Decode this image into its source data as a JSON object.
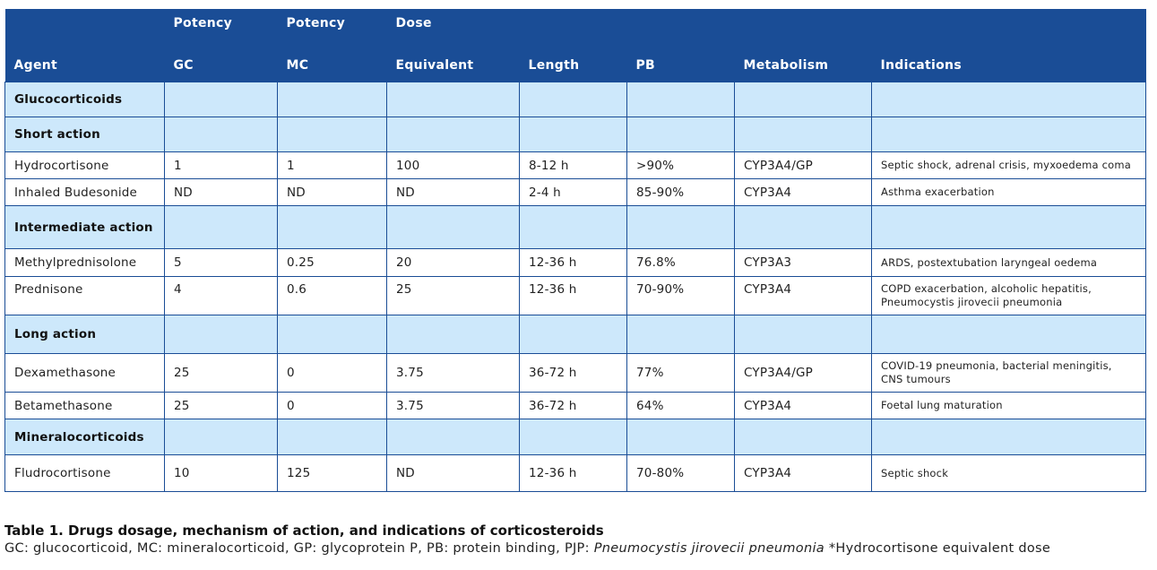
{
  "header": {
    "agent": "Agent",
    "gc": [
      "Potency",
      "GC"
    ],
    "mc": [
      "Potency",
      "MC"
    ],
    "dose": [
      "Dose",
      "Equivalent"
    ],
    "length": "Length",
    "pb": "PB",
    "metabolism": "Metabolism",
    "indications": "Indications"
  },
  "rows": {
    "r0": {
      "section": "Glucocorticoids"
    },
    "r1": {
      "section": "Short action"
    },
    "r2": {
      "agent": "Hydrocortisone",
      "gc": "1",
      "mc": "1",
      "dose": "100",
      "length": "8-12 h",
      "pb": ">90%",
      "metabolism": "CYP3A4/GP",
      "indications": "Septic shock, adrenal crisis, myxoedema coma"
    },
    "r3": {
      "agent": "Inhaled Budesonide",
      "gc": "ND",
      "mc": "ND",
      "dose": "ND",
      "length": "2-4 h",
      "pb": "85-90%",
      "metabolism": "CYP3A4",
      "indications": "Asthma exacerbation"
    },
    "r4": {
      "section": "Intermediate action"
    },
    "r5": {
      "agent": "Methylprednisolone",
      "gc": "5",
      "mc": "0.25",
      "dose": "20",
      "length": "12-36 h",
      "pb": "76.8%",
      "metabolism": "CYP3A3",
      "indications": "ARDS, postextubation laryngeal oedema"
    },
    "r6": {
      "agent": "Prednisone",
      "gc": "4",
      "mc": "0.6",
      "dose": "25",
      "length": "12-36 h",
      "pb": "70-90%",
      "metabolism": "CYP3A4",
      "indications": "COPD exacerbation, alcoholic hepatitis, Pneumocystis jirovecii pneumonia"
    },
    "r7": {
      "section": "Long action"
    },
    "r8": {
      "agent": "Dexamethasone",
      "gc": "25",
      "mc": "0",
      "dose": "3.75",
      "length": "36-72 h",
      "pb": "77%",
      "metabolism": "CYP3A4/GP",
      "indications": "COVID-19 pneumonia, bacterial meningitis, CNS tumours"
    },
    "r9": {
      "agent": "Betamethasone",
      "gc": "25",
      "mc": "0",
      "dose": "3.75",
      "length": "36-72 h",
      "pb": "64%",
      "metabolism": "CYP3A4",
      "indications": "Foetal lung maturation"
    },
    "r10": {
      "section": "Mineralocorticoids"
    },
    "r11": {
      "agent": "Fludrocortisone",
      "gc": "10",
      "mc": "125",
      "dose": "ND",
      "length": "12-36 h",
      "pb": "70-80%",
      "metabolism": "CYP3A4",
      "indications": "Septic shock"
    }
  },
  "caption": {
    "title": "Table 1. Drugs dosage, mechanism of action, and indications of corticosteroids",
    "note_prefix": "GC: glucocorticoid, MC: mineralocorticoid, GP: glycoprotein P, PB: protein binding, PJP: ",
    "note_italic": "Pneumocystis jirovecii  pneumonia",
    "note_suffix": " *Hydrocortisone equivalent dose"
  },
  "colors": {
    "header_bg": "#1a4d96",
    "section_bg": "#cde8fb",
    "border": "#1a4d96"
  }
}
